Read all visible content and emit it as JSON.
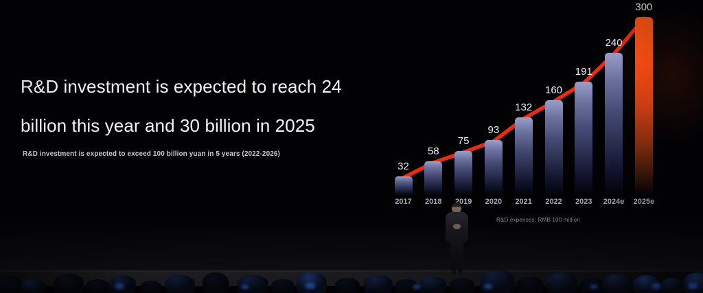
{
  "slide": {
    "title_lines": [
      "R&D investment is expected to reach 24",
      "billion this year and 30 billion in 2025"
    ],
    "subtitle": "R&D investment is expected to exceed 100 billion yuan in 5 years (2022-2026)",
    "chart_footnote": "R&D expenses: RMB 100 million"
  },
  "chart_data": {
    "type": "bar",
    "categories": [
      "2017",
      "2018",
      "2019",
      "2020",
      "2021",
      "2022",
      "2023",
      "2024e",
      "2025e"
    ],
    "values": [
      32,
      58,
      75,
      93,
      132,
      160,
      191,
      240,
      300
    ],
    "title": "",
    "xlabel": "",
    "ylabel": "R&D expenses (RMB 100 million)",
    "ylim": [
      0,
      310
    ],
    "grid": false,
    "legend": "none",
    "highlight_index": 8,
    "trend_line": true
  },
  "colors": {
    "background": "#020205",
    "title_text": "#f2f3f6",
    "bar_gradient_top": "#9a9ec9",
    "bar_gradient_bottom": "#10122a",
    "highlight_bar_top": "#ff5514",
    "trend_line": "#ea2d12",
    "value_label": "#eceef2",
    "axis_label": "#a6aab4",
    "footnote_text": "#8e9199"
  }
}
